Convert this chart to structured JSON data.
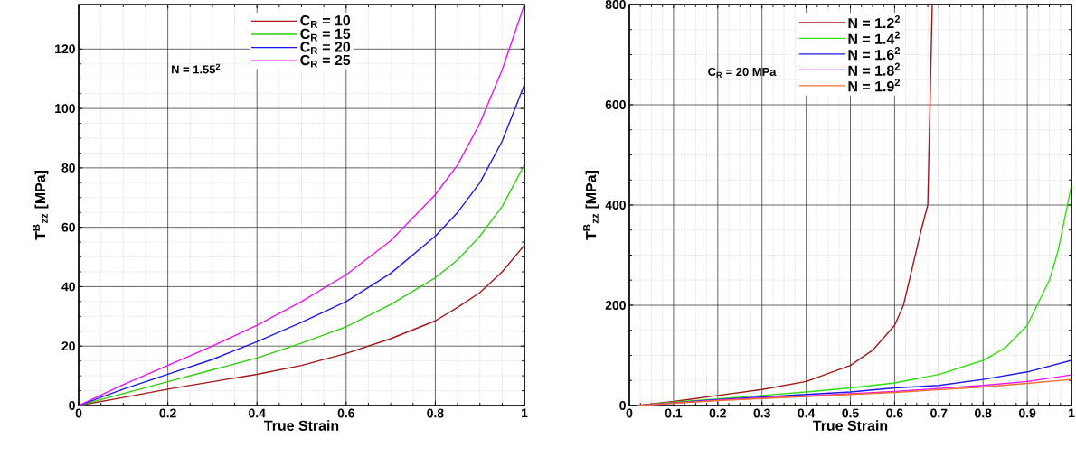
{
  "chart_data": [
    {
      "type": "line",
      "xlabel": "True Strain",
      "ylabel": "T$^{B}$$_{zz}$ [MPa]",
      "annotations": [
        "N = 1.55$^{2}$"
      ],
      "xlim": [
        0,
        1
      ],
      "ylim": [
        0,
        135
      ],
      "xticks": [
        0,
        0.2,
        0.4,
        0.6,
        0.8,
        1
      ],
      "yticks": [
        0,
        20,
        40,
        60,
        80,
        100,
        120
      ],
      "grid": true,
      "legend": "top",
      "marker": "none",
      "line_style": "solid",
      "x": [
        0,
        0.1,
        0.2,
        0.3,
        0.4,
        0.5,
        0.6,
        0.7,
        0.8,
        0.85,
        0.9,
        0.95,
        1.0
      ],
      "series": [
        {
          "name": "C$_{R}$ = 10",
          "color": "#a01818",
          "values": [
            0,
            2.7,
            5.5,
            8,
            10.5,
            13.5,
            17.5,
            22.5,
            28.5,
            33,
            38,
            45,
            54
          ]
        },
        {
          "name": "C$_{R}$ = 15",
          "color": "#33cc11",
          "values": [
            0,
            4,
            8,
            12,
            16,
            21,
            26.5,
            34,
            43,
            49,
            57,
            67,
            81
          ]
        },
        {
          "name": "C$_{R}$ = 20",
          "color": "#1a1aee",
          "values": [
            0,
            5.5,
            10.5,
            15.5,
            21.5,
            28,
            35,
            44.5,
            57,
            65,
            75,
            89,
            108
          ]
        },
        {
          "name": "C$_{R}$ = 25",
          "color": "#ee11ee",
          "values": [
            0,
            7,
            13.5,
            20,
            27,
            35,
            44,
            55.5,
            71,
            81,
            95,
            113,
            135
          ]
        }
      ]
    },
    {
      "type": "line",
      "xlabel": "True Strain",
      "ylabel": "T$^{B}$$_{zz}$ [MPa]",
      "annotations": [
        "C$_{R}$ = 20 MPa"
      ],
      "xlim": [
        0,
        1
      ],
      "ylim": [
        0,
        800
      ],
      "xticks": [
        0,
        0.1,
        0.2,
        0.3,
        0.4,
        0.5,
        0.6,
        0.7,
        0.8,
        0.9,
        1
      ],
      "yticks": [
        0,
        200,
        400,
        600,
        800
      ],
      "grid": true,
      "legend": "top",
      "marker": "none",
      "line_style": "solid",
      "series": [
        {
          "name": "N = 1.2$^{2}$",
          "color": "#a01818",
          "x": [
            0.02,
            0.1,
            0.2,
            0.3,
            0.4,
            0.5,
            0.55,
            0.6,
            0.62,
            0.64,
            0.66,
            0.675,
            0.68,
            0.685
          ],
          "values": [
            0,
            8,
            20,
            32,
            48,
            80,
            110,
            160,
            200,
            275,
            350,
            400,
            600,
            800
          ]
        },
        {
          "name": "N = 1.4$^{2}$",
          "color": "#33dd11",
          "x": [
            0.02,
            0.1,
            0.2,
            0.3,
            0.4,
            0.5,
            0.6,
            0.7,
            0.8,
            0.85,
            0.9,
            0.95,
            0.97,
            1.0
          ],
          "values": [
            0,
            7,
            13,
            20,
            27,
            35,
            45,
            62,
            90,
            115,
            160,
            250,
            310,
            440
          ]
        },
        {
          "name": "N = 1.6$^{2}$",
          "color": "#1a1aee",
          "x": [
            0.02,
            0.2,
            0.4,
            0.5,
            0.6,
            0.7,
            0.8,
            0.9,
            1.0
          ],
          "values": [
            0,
            12,
            22,
            27,
            35,
            40,
            52,
            67,
            90
          ]
        },
        {
          "name": "N = 1.8$^{2}$",
          "color": "#ee11ee",
          "x": [
            0.02,
            0.2,
            0.4,
            0.6,
            0.8,
            0.9,
            1.0
          ],
          "values": [
            0,
            11,
            19,
            28,
            40,
            48,
            61
          ]
        },
        {
          "name": "N = 1.9$^{2}$",
          "color": "#f07030",
          "x": [
            0.02,
            0.2,
            0.4,
            0.6,
            0.8,
            0.9,
            1.0
          ],
          "values": [
            0,
            10,
            18,
            26,
            37,
            44,
            52
          ]
        }
      ]
    }
  ]
}
